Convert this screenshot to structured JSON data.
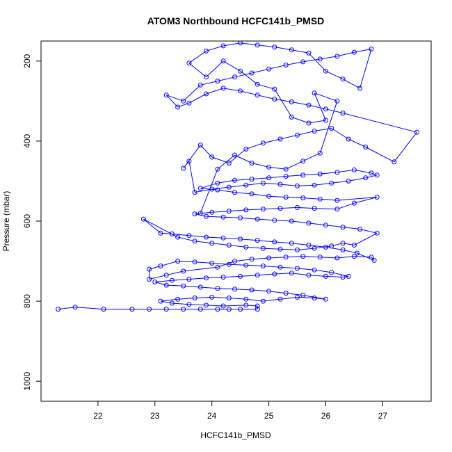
{
  "chart_data": {
    "type": "scatter",
    "title": "ATOM3 Northbound HCFC141b_PMSD",
    "xlabel": "HCFC141b_PMSD",
    "ylabel": "Pressure (mbar)",
    "xlim": [
      21.0,
      27.85
    ],
    "ylim": [
      1050,
      150
    ],
    "y_inverted": true,
    "x_ticks": [
      22,
      23,
      24,
      25,
      26,
      27
    ],
    "x_tick_labels": [
      "22",
      "23",
      "24",
      "25",
      "26",
      "27"
    ],
    "y_ticks": [
      200,
      400,
      600,
      800,
      1000
    ],
    "y_tick_labels": [
      "200",
      "400",
      "600",
      "800",
      "1000"
    ],
    "grid": false,
    "legend": "none",
    "marker": "open-circle",
    "color": "#0000ff",
    "series": [
      {
        "points": [
          [
            21.3,
            820
          ],
          [
            21.6,
            815
          ],
          [
            22.1,
            820
          ],
          [
            22.6,
            820
          ],
          [
            22.9,
            820
          ],
          [
            23.2,
            820
          ],
          [
            23.5,
            820
          ],
          [
            23.8,
            820
          ],
          [
            24.1,
            820
          ],
          [
            24.3,
            820
          ],
          [
            24.5,
            820
          ],
          [
            24.8,
            820
          ],
          [
            24.8,
            812
          ],
          [
            24.6,
            810
          ],
          [
            24.2,
            812
          ],
          [
            23.9,
            810
          ],
          [
            23.6,
            808
          ],
          [
            23.3,
            805
          ],
          [
            23.1,
            800
          ],
          [
            23.4,
            795
          ],
          [
            23.7,
            792
          ],
          [
            24.0,
            790
          ],
          [
            24.3,
            792
          ],
          [
            24.6,
            795
          ],
          [
            24.9,
            800
          ],
          [
            25.2,
            795
          ],
          [
            25.5,
            790
          ],
          [
            25.8,
            792
          ],
          [
            26.0,
            795
          ],
          [
            25.6,
            785
          ],
          [
            25.3,
            780
          ],
          [
            25.0,
            775
          ],
          [
            24.7,
            772
          ],
          [
            24.4,
            770
          ],
          [
            24.1,
            768
          ],
          [
            23.8,
            765
          ],
          [
            23.5,
            762
          ],
          [
            23.2,
            760
          ],
          [
            23.0,
            752
          ],
          [
            23.3,
            748
          ],
          [
            23.6,
            745
          ],
          [
            23.9,
            742
          ],
          [
            24.2,
            740
          ],
          [
            24.5,
            738
          ],
          [
            24.8,
            735
          ],
          [
            25.1,
            732
          ],
          [
            25.4,
            730
          ],
          [
            25.7,
            735
          ],
          [
            26.0,
            738
          ],
          [
            26.3,
            740
          ],
          [
            26.4,
            738
          ],
          [
            26.1,
            728
          ],
          [
            25.8,
            722
          ],
          [
            25.5,
            718
          ],
          [
            25.2,
            715
          ],
          [
            24.9,
            712
          ],
          [
            24.6,
            710
          ],
          [
            24.3,
            708
          ],
          [
            24.0,
            705
          ],
          [
            23.7,
            702
          ],
          [
            23.4,
            700
          ],
          [
            23.1,
            712
          ],
          [
            22.9,
            720
          ],
          [
            22.9,
            745
          ],
          [
            23.2,
            735
          ],
          [
            23.5,
            725
          ],
          [
            24.1,
            715
          ],
          [
            24.4,
            700
          ],
          [
            24.7,
            695
          ],
          [
            25.0,
            692
          ],
          [
            25.3,
            690
          ],
          [
            25.6,
            688
          ],
          [
            25.9,
            690
          ],
          [
            26.2,
            692
          ],
          [
            26.5,
            688
          ],
          [
            26.8,
            690
          ],
          [
            26.85,
            698
          ],
          [
            26.55,
            680
          ],
          [
            26.3,
            672
          ],
          [
            26.0,
            665
          ],
          [
            25.7,
            660
          ],
          [
            25.4,
            655
          ],
          [
            25.1,
            652
          ],
          [
            24.8,
            648
          ],
          [
            24.5,
            645
          ],
          [
            24.2,
            642
          ],
          [
            23.9,
            640
          ],
          [
            23.6,
            636
          ],
          [
            23.3,
            632
          ],
          [
            23.1,
            630
          ],
          [
            22.8,
            595
          ],
          [
            23.4,
            640
          ],
          [
            23.7,
            650
          ],
          [
            24.0,
            655
          ],
          [
            24.3,
            660
          ],
          [
            24.6,
            665
          ],
          [
            24.9,
            668
          ],
          [
            25.2,
            670
          ],
          [
            25.5,
            672
          ],
          [
            25.8,
            668
          ],
          [
            26.1,
            662
          ],
          [
            26.3,
            655
          ],
          [
            26.5,
            660
          ],
          [
            26.9,
            630
          ],
          [
            26.6,
            620
          ],
          [
            26.3,
            615
          ],
          [
            26.0,
            610
          ],
          [
            25.7,
            605
          ],
          [
            25.4,
            600
          ],
          [
            25.1,
            598
          ],
          [
            24.8,
            595
          ],
          [
            24.5,
            592
          ],
          [
            24.2,
            590
          ],
          [
            23.9,
            588
          ],
          [
            23.7,
            582
          ],
          [
            24.0,
            578
          ],
          [
            24.3,
            575
          ],
          [
            24.6,
            572
          ],
          [
            24.9,
            570
          ],
          [
            25.2,
            568
          ],
          [
            25.5,
            566
          ],
          [
            25.8,
            568
          ],
          [
            26.2,
            570
          ],
          [
            26.5,
            555
          ],
          [
            26.9,
            540
          ],
          [
            26.2,
            548
          ],
          [
            25.9,
            545
          ],
          [
            25.6,
            542
          ],
          [
            25.3,
            540
          ],
          [
            25.0,
            538
          ],
          [
            24.7,
            532
          ],
          [
            24.4,
            528
          ],
          [
            24.1,
            522
          ],
          [
            23.8,
            518
          ],
          [
            24.1,
            505
          ],
          [
            24.4,
            498
          ],
          [
            24.7,
            495
          ],
          [
            25.0,
            492
          ],
          [
            25.3,
            488
          ],
          [
            25.6,
            485
          ],
          [
            25.9,
            482
          ],
          [
            26.2,
            478
          ],
          [
            26.5,
            472
          ],
          [
            26.8,
            480
          ],
          [
            26.9,
            485
          ],
          [
            26.7,
            492
          ],
          [
            26.4,
            500
          ],
          [
            26.1,
            505
          ],
          [
            25.8,
            510
          ],
          [
            25.5,
            512
          ],
          [
            25.2,
            508
          ],
          [
            24.9,
            505
          ],
          [
            24.6,
            510
          ],
          [
            24.3,
            515
          ],
          [
            24.0,
            520
          ],
          [
            23.7,
            528
          ],
          [
            23.6,
            450
          ],
          [
            23.5,
            468
          ],
          [
            23.8,
            410
          ],
          [
            24.0,
            440
          ],
          [
            24.3,
            455
          ],
          [
            24.6,
            420
          ],
          [
            24.9,
            405
          ],
          [
            25.2,
            395
          ],
          [
            25.5,
            385
          ],
          [
            25.8,
            375
          ],
          [
            26.1,
            368
          ],
          [
            26.4,
            395
          ],
          [
            26.7,
            415
          ],
          [
            27.2,
            452
          ],
          [
            27.6,
            378
          ],
          [
            26.3,
            330
          ],
          [
            26.0,
            320
          ],
          [
            25.7,
            310
          ],
          [
            25.4,
            302
          ],
          [
            25.1,
            295
          ],
          [
            24.8,
            285
          ],
          [
            24.5,
            275
          ],
          [
            24.2,
            268
          ],
          [
            23.9,
            282
          ],
          [
            23.6,
            305
          ],
          [
            23.4,
            315
          ],
          [
            23.2,
            285
          ],
          [
            23.5,
            300
          ],
          [
            23.8,
            260
          ],
          [
            24.1,
            250
          ],
          [
            24.4,
            240
          ],
          [
            24.7,
            230
          ],
          [
            25.0,
            220
          ],
          [
            25.3,
            210
          ],
          [
            25.6,
            202
          ],
          [
            25.9,
            195
          ],
          [
            26.2,
            188
          ],
          [
            26.5,
            178
          ],
          [
            26.8,
            170
          ],
          [
            26.6,
            268
          ],
          [
            26.3,
            245
          ],
          [
            26.0,
            225
          ],
          [
            25.7,
            180
          ],
          [
            25.4,
            172
          ],
          [
            25.1,
            165
          ],
          [
            24.8,
            160
          ],
          [
            24.5,
            155
          ],
          [
            24.2,
            162
          ],
          [
            23.9,
            175
          ],
          [
            23.6,
            205
          ],
          [
            23.9,
            240
          ],
          [
            24.2,
            200
          ],
          [
            24.5,
            225
          ],
          [
            24.8,
            258
          ],
          [
            25.1,
            270
          ],
          [
            25.4,
            340
          ],
          [
            25.7,
            355
          ],
          [
            26.0,
            348
          ],
          [
            25.8,
            280
          ],
          [
            26.2,
            300
          ],
          [
            25.9,
            430
          ],
          [
            25.6,
            450
          ],
          [
            25.3,
            470
          ],
          [
            25.0,
            465
          ],
          [
            24.7,
            455
          ],
          [
            24.4,
            435
          ],
          [
            24.1,
            470
          ],
          [
            23.8,
            580
          ]
        ],
        "connected": true
      }
    ]
  }
}
